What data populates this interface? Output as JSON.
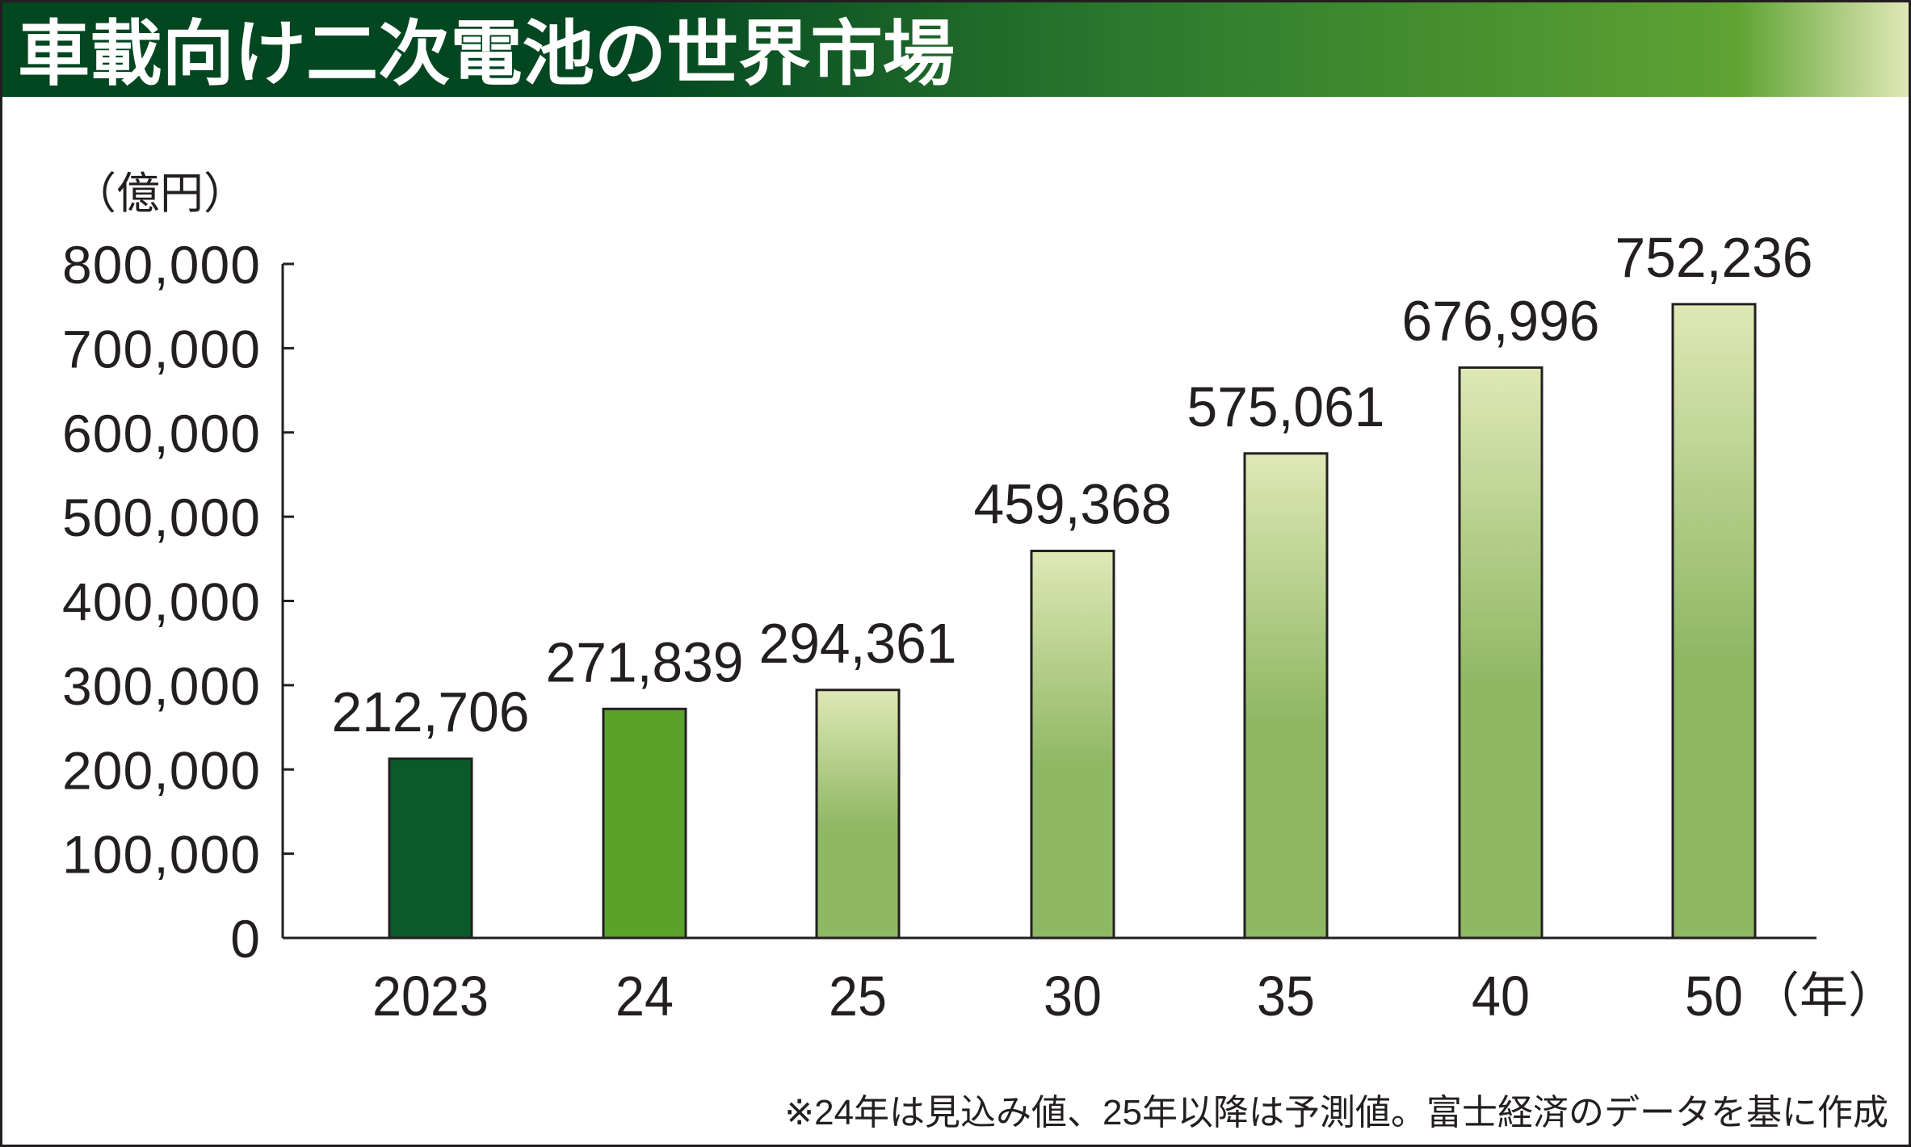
{
  "chart_data": {
    "type": "bar",
    "title": "車載向け二次電池の世界市場",
    "ylabel": "（億円）",
    "xlabel": "（年）",
    "categories": [
      "2023",
      "24",
      "25",
      "30",
      "35",
      "40",
      "50"
    ],
    "values": [
      212706,
      271839,
      294361,
      459368,
      575061,
      676996,
      752236
    ],
    "value_labels": [
      "212,706",
      "271,839",
      "294,361",
      "459,368",
      "575,061",
      "676,996",
      "752,236"
    ],
    "bar_styles": [
      "actual",
      "estimate",
      "forecast",
      "forecast",
      "forecast",
      "forecast",
      "forecast"
    ],
    "ylim": [
      0,
      800000
    ],
    "yticks": [
      0,
      100000,
      200000,
      300000,
      400000,
      500000,
      600000,
      700000,
      800000
    ],
    "ytick_labels": [
      "0",
      "100,000",
      "200,000",
      "300,000",
      "400,000",
      "500,000",
      "600,000",
      "700,000",
      "800,000"
    ],
    "grid": false,
    "footnote": "※24年は見込み値、25年以降は予測値。富士経済のデータを基に作成",
    "colors": {
      "actual": "#0b5a2a",
      "estimate": "#5ba22b",
      "forecast_top": "#dfe8b5",
      "forecast_bottom": "#8fb865",
      "title_dark": "#034721",
      "title_mid": "#2d7a2e",
      "title_light": "#5ea332",
      "title_end": "#e0e8b6"
    }
  }
}
